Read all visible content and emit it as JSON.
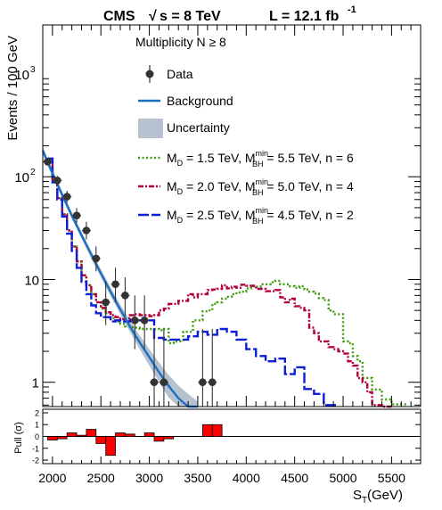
{
  "header": {
    "experiment": "CMS",
    "energy_label": "√s = 8 TeV",
    "sqrt_symbol": "√",
    "energy_rest": "s = 8 TeV",
    "lumi_label": "L = 12.1 fb",
    "lumi_exp": "-1"
  },
  "legend": {
    "header": "Multiplicity N ≥ 8",
    "entries": [
      {
        "label": "Data",
        "style": "marker",
        "color": "#333333"
      },
      {
        "label": "Background",
        "style": "line",
        "color": "#1a6fc4"
      },
      {
        "label": "Uncertainty",
        "style": "band",
        "color": "#b6c2cf"
      },
      {
        "style": "dotted",
        "color": "#3f9a0c",
        "md": "M",
        "md_sub": "D",
        "md_val": " = 1.5 TeV, M",
        "bh_sup": "min",
        "bh_sub": "BH",
        "tail": " = 5.5 TeV, n = 6"
      },
      {
        "style": "dashdot",
        "color": "#b4003c",
        "md": "M",
        "md_sub": "D",
        "md_val": " = 2.0 TeV, M",
        "bh_sup": "min",
        "bh_sub": "BH",
        "tail": " = 5.0 TeV, n = 4"
      },
      {
        "style": "dashlong",
        "color": "#0a1fd6",
        "md": "M",
        "md_sub": "D",
        "md_val": " = 2.5 TeV, M",
        "bh_sup": "min",
        "bh_sub": "BH",
        "tail": " = 4.5 TeV, n = 2"
      }
    ]
  },
  "axes": {
    "ylabel": "Events / 100 GeV",
    "xlabel_main": "S",
    "xlabel_sub": "T",
    "xlabel_unit": " (GeV)",
    "pull_label": "Pull (σ)",
    "x_ticks": [
      "2000",
      "2500",
      "3000",
      "3500",
      "4000",
      "4500",
      "5000",
      "5500"
    ],
    "y_ticks": [
      {
        "base": "1",
        "exp": ""
      },
      {
        "base": "10",
        "exp": ""
      },
      {
        "base": "10",
        "exp": "2"
      },
      {
        "base": "10",
        "exp": "3"
      }
    ],
    "pull_ticks": [
      "2",
      "1",
      "0",
      "-1",
      "-2"
    ]
  },
  "colors": {
    "background_line": "#1a6fc4",
    "uncertainty_band": "#b6c2cf",
    "md15": "#3f9a0c",
    "md20": "#b4003c",
    "md25": "#0a1fd6",
    "data": "#333333",
    "pull_bar": "#ff0000"
  },
  "chart_data": {
    "type": "line",
    "title": "CMS √s = 8 TeV   L = 12.1 fb-1",
    "xlabel": "S_T (GeV)",
    "ylabel": "Events / 100 GeV",
    "xlim": [
      1900,
      5800
    ],
    "ylim": [
      0.58,
      3000
    ],
    "y_scale": "log",
    "pull_ylim": [
      -2.3,
      2.3
    ],
    "bin_width": 100,
    "data": {
      "x": [
        1950,
        2050,
        2150,
        2250,
        2350,
        2450,
        2550,
        2650,
        2750,
        2850,
        2950,
        3050,
        3150,
        3550,
        3650
      ],
      "y": [
        140,
        92,
        64,
        42,
        30,
        16,
        6,
        9,
        7,
        4,
        4,
        1,
        1,
        1,
        1
      ],
      "err_up": [
        12,
        10,
        9,
        7.5,
        6.5,
        5,
        3.5,
        4,
        3.5,
        3,
        3,
        2.3,
        2.3,
        2.3,
        2.3
      ],
      "err_down": [
        11,
        9.5,
        8,
        6.5,
        5.5,
        4,
        2.4,
        3,
        2.6,
        1.9,
        1.9,
        0.83,
        0.83,
        0.83,
        0.83
      ]
    },
    "background": {
      "x": [
        1900,
        2000,
        2100,
        2200,
        2300,
        2400,
        2500,
        2600,
        2700,
        2800,
        2900,
        3000,
        3100,
        3200,
        3300,
        3400,
        3500
      ],
      "y": [
        180,
        108,
        67,
        42,
        27,
        17.5,
        11.5,
        7.6,
        5.1,
        3.5,
        2.45,
        1.75,
        1.25,
        0.92,
        0.7,
        0.56,
        0.46
      ],
      "band_low": [
        165,
        100,
        62,
        39,
        25,
        16,
        10.5,
        6.9,
        4.6,
        3.1,
        2.1,
        1.45,
        1.0,
        0.71,
        0.52,
        0.4,
        0.32
      ],
      "band_high": [
        195,
        116,
        72,
        45,
        29,
        19,
        12.6,
        8.4,
        5.7,
        4.0,
        2.85,
        2.1,
        1.55,
        1.18,
        0.93,
        0.77,
        0.65
      ]
    },
    "series": [
      {
        "name": "M_D = 1.5 TeV, M_BH^min = 5.5 TeV, n = 6",
        "style": "dotted",
        "edges": [
          1950,
          2000,
          2050,
          2100,
          2150,
          2200,
          2250,
          2300,
          2350,
          2400,
          2450,
          2500,
          2550,
          2600,
          2650,
          2700,
          2750,
          2800,
          2850,
          2900,
          2950,
          3000,
          3050,
          3100,
          3150,
          3200,
          3250,
          3300,
          3350,
          3400,
          3450,
          3500,
          3550,
          3600,
          3650,
          3700,
          3750,
          3800,
          3850,
          3900,
          3950,
          4000,
          4050,
          4100,
          4150,
          4200,
          4250,
          4300,
          4350,
          4400,
          4450,
          4500,
          4550,
          4600,
          4650,
          4700,
          4750,
          4800,
          4850,
          4900,
          4950,
          5000,
          5050,
          5100,
          5150,
          5200,
          5250,
          5300,
          5350,
          5400,
          5450,
          5500,
          5550,
          5600,
          5650
        ],
        "values": [
          150,
          90,
          62,
          43,
          30,
          21,
          15,
          11,
          8.8,
          7.2,
          6.0,
          5.2,
          4.7,
          4.2,
          3.9,
          3.7,
          3.5,
          3.45,
          3.4,
          3.3,
          3.3,
          3.3,
          3.3,
          3.2,
          3.3,
          2.4,
          2.5,
          2.5,
          3.1,
          3.1,
          4.0,
          4.0,
          4.9,
          5.0,
          5.8,
          6.0,
          6.5,
          6.8,
          7.2,
          7.5,
          7.6,
          8.2,
          8.6,
          8.5,
          9.0,
          9.0,
          9.4,
          9.7,
          9.0,
          9.0,
          8.6,
          8.3,
          8.6,
          8.0,
          7.6,
          7.3,
          6.6,
          6.3,
          5.0,
          4.6,
          4.6,
          2.5,
          2.4,
          1.8,
          1.6,
          1.1,
          1.1,
          0.85,
          0.85,
          0.68,
          0.68,
          0.61,
          0.61,
          0.61
        ]
      },
      {
        "name": "M_D = 2.0 TeV, M_BH^min = 5.0 TeV, n = 4",
        "style": "dashdot",
        "edges": [
          1950,
          2000,
          2050,
          2100,
          2150,
          2200,
          2250,
          2300,
          2350,
          2400,
          2450,
          2500,
          2550,
          2600,
          2650,
          2700,
          2750,
          2800,
          2850,
          2900,
          2950,
          3000,
          3050,
          3100,
          3150,
          3200,
          3250,
          3300,
          3350,
          3400,
          3450,
          3500,
          3550,
          3600,
          3650,
          3700,
          3750,
          3800,
          3850,
          3900,
          3950,
          4000,
          4050,
          4100,
          4150,
          4200,
          4250,
          4300,
          4350,
          4400,
          4450,
          4500,
          4550,
          4600,
          4650,
          4700,
          4750,
          4800,
          4850,
          4900,
          4950,
          5000,
          5050,
          5100,
          5150,
          5200,
          5250,
          5300,
          5350,
          5400,
          5450,
          5500
        ],
        "values": [
          150,
          90,
          62,
          43,
          30,
          21,
          15,
          11,
          8.8,
          7.2,
          6.0,
          5.3,
          4.8,
          4.5,
          4.3,
          4.1,
          4.2,
          4.5,
          4.6,
          4.5,
          4.5,
          4.4,
          4.5,
          5.0,
          5.2,
          5.8,
          5.8,
          6.2,
          6.2,
          7.2,
          6.7,
          7.2,
          7.2,
          7.9,
          8.0,
          8.1,
          8.8,
          8.2,
          8.5,
          8.3,
          8.9,
          8.7,
          8.7,
          8.1,
          8.1,
          7.7,
          7.7,
          7.9,
          6.7,
          6.0,
          6.5,
          5.5,
          5.3,
          5.0,
          3.4,
          3.0,
          2.5,
          2.5,
          2.2,
          2.1,
          2.0,
          1.9,
          1.6,
          1.45,
          1.1,
          1.0,
          0.8,
          0.6,
          0.6,
          0.55,
          0.55
        ]
      },
      {
        "name": "M_D = 2.5 TeV, M_BH^min = 4.5 TeV, n = 2",
        "style": "dashlong",
        "edges": [
          1950,
          2000,
          2050,
          2100,
          2150,
          2200,
          2250,
          2300,
          2350,
          2400,
          2450,
          2500,
          2550,
          2600,
          2650,
          2700,
          2750,
          2800,
          2850,
          2900,
          2950,
          3000,
          3050,
          3100,
          3150,
          3200,
          3250,
          3300,
          3350,
          3400,
          3450,
          3500,
          3550,
          3600,
          3650,
          3700,
          3750,
          3800,
          3850,
          3900,
          3950,
          4000,
          4050,
          4100,
          4150,
          4200,
          4250,
          4300,
          4350,
          4400,
          4450,
          4500,
          4550,
          4600,
          4650,
          4700,
          4750,
          4800,
          4850,
          4900,
          4950
        ],
        "values": [
          150,
          88,
          60,
          41,
          28,
          19,
          13,
          9.5,
          7.2,
          5.6,
          4.7,
          4.3,
          4.3,
          3.9,
          4.0,
          3.9,
          3.9,
          4.0,
          4.0,
          4.0,
          4.0,
          4.0,
          2.7,
          2.7,
          2.6,
          2.6,
          2.6,
          2.6,
          2.6,
          2.8,
          2.8,
          3.1,
          3.1,
          2.9,
          2.9,
          3.3,
          3.3,
          3.1,
          3.1,
          2.6,
          2.6,
          2.1,
          2.1,
          1.8,
          1.8,
          1.6,
          1.6,
          1.7,
          1.7,
          1.2,
          1.2,
          1.4,
          1.4,
          0.86,
          0.86,
          0.77,
          0.77,
          0.6,
          0.6,
          0.6
        ]
      }
    ],
    "pull": {
      "edges": [
        1950,
        2050,
        2150,
        2250,
        2350,
        2450,
        2550,
        2650,
        2750,
        2850,
        2950,
        3050,
        3150,
        3250,
        3350,
        3450,
        3550,
        3650,
        3750
      ],
      "values": [
        -0.3,
        -0.2,
        0.3,
        0.1,
        0.6,
        -0.6,
        -1.6,
        0.3,
        0.2,
        0.0,
        0.3,
        -0.4,
        -0.2,
        0.0,
        0.0,
        0.0,
        1.0,
        1.0
      ]
    }
  }
}
